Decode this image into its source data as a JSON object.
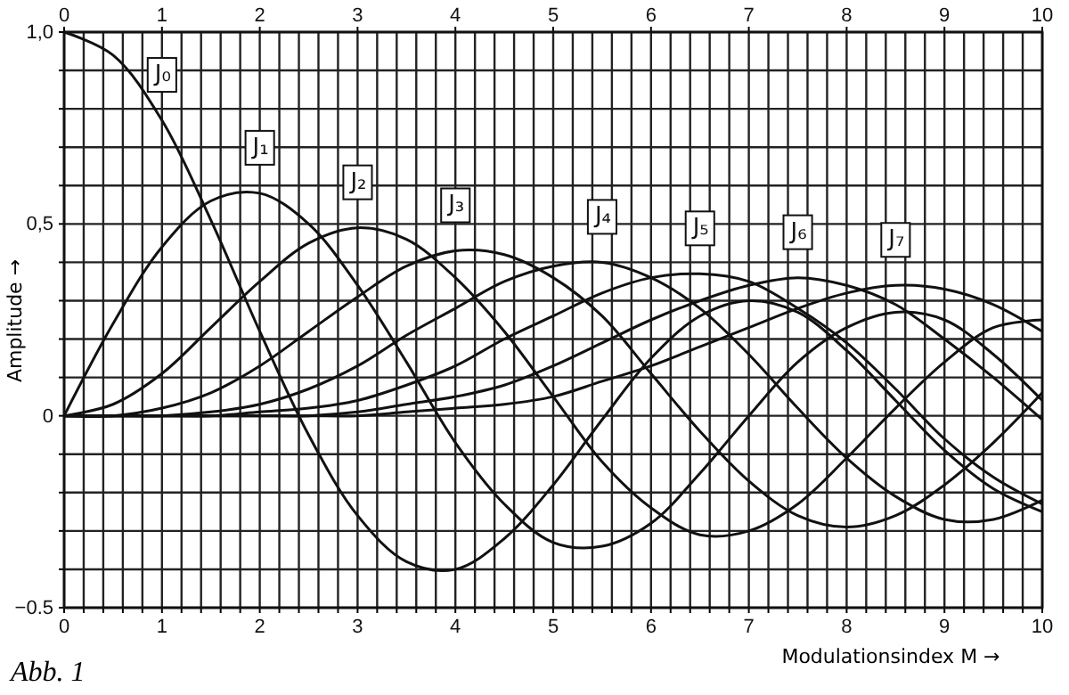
{
  "chart_data": {
    "type": "line",
    "xlabel": "Modulationsindex M →",
    "ylabel": "Amplitude →",
    "annotations": [
      "Abb. 1"
    ],
    "x": [
      0,
      0.5,
      1,
      1.5,
      2,
      2.5,
      3,
      3.5,
      4,
      4.5,
      5,
      5.5,
      6,
      6.5,
      7,
      7.5,
      8,
      8.5,
      9,
      9.5,
      10
    ],
    "series": [
      {
        "name": "J₀",
        "color": "#111111",
        "values": [
          1,
          0.94,
          0.77,
          0.51,
          0.22,
          -0.05,
          -0.26,
          -0.38,
          -0.4,
          -0.32,
          -0.18,
          -0.01,
          0.15,
          0.26,
          0.3,
          0.27,
          0.17,
          0.04,
          -0.09,
          -0.19,
          -0.25
        ]
      },
      {
        "name": "J₁",
        "color": "#111111",
        "values": [
          0,
          0.24,
          0.44,
          0.56,
          0.58,
          0.5,
          0.34,
          0.14,
          -0.07,
          -0.23,
          -0.33,
          -0.34,
          -0.28,
          -0.15,
          0.0,
          0.14,
          0.23,
          0.27,
          0.25,
          0.16,
          0.04
        ]
      },
      {
        "name": "J₂",
        "color": "#111111",
        "values": [
          0,
          0.03,
          0.11,
          0.23,
          0.35,
          0.45,
          0.49,
          0.46,
          0.36,
          0.22,
          0.05,
          -0.12,
          -0.24,
          -0.31,
          -0.3,
          -0.23,
          -0.11,
          0.02,
          0.14,
          0.23,
          0.25
        ]
      },
      {
        "name": "J₃",
        "color": "#111111",
        "values": [
          0,
          0.0,
          0.02,
          0.06,
          0.13,
          0.22,
          0.31,
          0.39,
          0.43,
          0.42,
          0.36,
          0.26,
          0.11,
          -0.04,
          -0.17,
          -0.26,
          -0.29,
          -0.26,
          -0.18,
          -0.07,
          0.06
        ]
      },
      {
        "name": "J₄",
        "color": "#111111",
        "values": [
          0,
          0.0,
          0.0,
          0.01,
          0.03,
          0.07,
          0.13,
          0.21,
          0.28,
          0.35,
          0.39,
          0.4,
          0.36,
          0.28,
          0.16,
          0.02,
          -0.11,
          -0.21,
          -0.27,
          -0.27,
          -0.22
        ]
      },
      {
        "name": "J₅",
        "color": "#111111",
        "values": [
          0,
          0.0,
          0.0,
          0.0,
          0.01,
          0.02,
          0.04,
          0.08,
          0.13,
          0.2,
          0.26,
          0.32,
          0.36,
          0.37,
          0.35,
          0.28,
          0.19,
          0.07,
          -0.06,
          -0.16,
          -0.23
        ]
      },
      {
        "name": "J₆",
        "color": "#111111",
        "values": [
          0,
          0.0,
          0.0,
          0.0,
          0.0,
          0.0,
          0.01,
          0.03,
          0.05,
          0.08,
          0.13,
          0.19,
          0.25,
          0.3,
          0.34,
          0.36,
          0.34,
          0.29,
          0.2,
          0.1,
          -0.01
        ]
      },
      {
        "name": "J₇",
        "color": "#111111",
        "values": [
          0,
          0.0,
          0.0,
          0.0,
          0.0,
          0.0,
          0.0,
          0.01,
          0.02,
          0.03,
          0.05,
          0.09,
          0.13,
          0.18,
          0.23,
          0.28,
          0.32,
          0.34,
          0.33,
          0.29,
          0.22
        ]
      }
    ],
    "xlim": [
      0,
      10
    ],
    "xticks": [
      0,
      {
        "value": 0.2,
        "label": null
      },
      {
        "value": 0.4,
        "label": null
      },
      {
        "value": 0.6,
        "label": null
      },
      {
        "value": 0.8,
        "label": null
      },
      1,
      {
        "value": 1.2,
        "label": null
      },
      {
        "value": 1.4,
        "label": null
      },
      {
        "value": 1.6,
        "label": null
      },
      {
        "value": 1.8,
        "label": null
      },
      2,
      {
        "value": 2.2,
        "label": null
      },
      {
        "value": 2.4,
        "label": null
      },
      {
        "value": 2.6,
        "label": null
      },
      {
        "value": 2.8,
        "label": null
      },
      3,
      {
        "value": 3.2,
        "label": null
      },
      {
        "value": 3.4,
        "label": null
      },
      {
        "value": 3.6,
        "label": null
      },
      {
        "value": 3.8,
        "label": null
      },
      4,
      {
        "value": 4.2,
        "label": null
      },
      {
        "value": 4.4,
        "label": null
      },
      {
        "value": 4.6,
        "label": null
      },
      {
        "value": 4.8,
        "label": null
      },
      5,
      {
        "value": 5.2,
        "label": null
      },
      {
        "value": 5.4,
        "label": null
      },
      {
        "value": 5.6,
        "label": null
      },
      {
        "value": 5.8,
        "label": null
      },
      6,
      {
        "value": 6.2,
        "label": null
      },
      {
        "value": 6.4,
        "label": null
      },
      {
        "value": 6.6,
        "label": null
      },
      {
        "value": 6.8,
        "label": null
      },
      7,
      {
        "value": 7.2,
        "label": null
      },
      {
        "value": 7.4,
        "label": null
      },
      {
        "value": 7.6,
        "label": null
      },
      {
        "value": 7.8,
        "label": null
      },
      8,
      {
        "value": 8.2,
        "label": null
      },
      {
        "value": 8.4,
        "label": null
      },
      {
        "value": 8.6,
        "label": null
      },
      {
        "value": 8.8,
        "label": null
      },
      9,
      {
        "value": 9.2,
        "label": null
      },
      {
        "value": 9.4,
        "label": null
      },
      {
        "value": 9.6,
        "label": null
      },
      {
        "value": 9.8,
        "label": null
      },
      10
    ],
    "x2lim": [
      0,
      10
    ],
    "x2ticks": [
      0,
      1,
      2,
      3,
      4,
      5,
      6,
      7,
      8,
      9,
      10
    ],
    "ylim": [
      -0.5,
      1
    ],
    "yticks": [
      {
        "value": -0.5,
        "label": "−0.5"
      },
      {
        "value": -0.4,
        "label": null
      },
      {
        "value": -0.3,
        "label": null
      },
      {
        "value": -0.2,
        "label": null
      },
      {
        "value": -0.1,
        "label": null
      },
      0,
      {
        "value": 0.1,
        "label": null
      },
      {
        "value": 0.2,
        "label": null
      },
      {
        "value": 0.3,
        "label": null
      },
      {
        "value": 0.4,
        "label": null
      },
      {
        "value": 0.5,
        "label": "0,5"
      },
      {
        "value": 0.6,
        "label": null
      },
      {
        "value": 0.7,
        "label": null
      },
      {
        "value": 0.8,
        "label": null
      },
      {
        "value": 0.9,
        "label": null
      },
      {
        "value": 1,
        "label": "1,0"
      }
    ],
    "grid": true,
    "marker": "none",
    "line_style": "solid"
  }
}
